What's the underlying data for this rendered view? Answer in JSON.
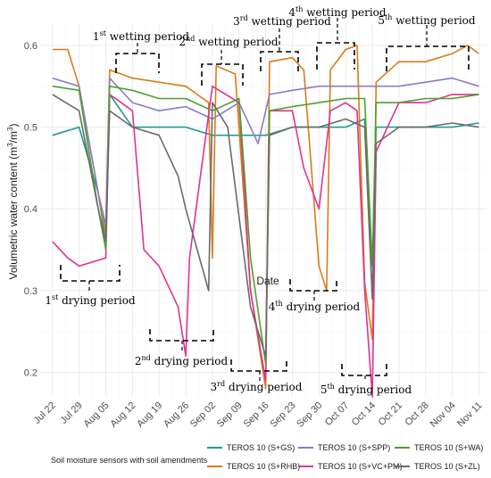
{
  "chart_data": {
    "type": "line",
    "xlabel": "Date",
    "ylabel": "Volumetric water content (m³/m³)",
    "ylabel_main": "Volumetric water content (m",
    "ylabel_unit_mid": "/m",
    "ylabel_end": ")",
    "ylim": [
      0.17,
      0.625
    ],
    "yticks": [
      0.2,
      0.3,
      0.4,
      0.5,
      0.6
    ],
    "ytick_labels": [
      "0.2",
      "0.3",
      "0.4",
      "0.5",
      "0.6"
    ],
    "xlim": [
      "2019-07-19",
      "2019-11-13"
    ],
    "xticks": [
      "2019-07-22",
      "2019-07-29",
      "2019-08-05",
      "2019-08-12",
      "2019-08-19",
      "2019-08-26",
      "2019-09-02",
      "2019-09-09",
      "2019-09-16",
      "2019-09-23",
      "2019-09-30",
      "2019-10-07",
      "2019-10-14",
      "2019-10-21",
      "2019-10-28",
      "2019-11-04",
      "2019-11-11"
    ],
    "xtick_labels": [
      "Jul 22",
      "Jul 29",
      "Aug 05",
      "Aug 12",
      "Aug 19",
      "Aug 26",
      "Sep 02",
      "Sep 09",
      "Sep 16",
      "Sep 23",
      "Sep 30",
      "Oct 07",
      "Oct 14",
      "Oct 21",
      "Oct 28",
      "Nov 04",
      "Nov 11"
    ],
    "grid": true,
    "legend_position": "bottom",
    "legend_title": "Soil moisture sensors with soil amendments",
    "series": [
      {
        "name": "TEROS 10 (S+GS)",
        "color": "#1a9e8f",
        "points": [
          [
            "2019-07-22",
            0.49
          ],
          [
            "2019-07-29",
            0.5
          ],
          [
            "2019-08-03",
            0.42
          ],
          [
            "2019-08-05",
            0.36
          ],
          [
            "2019-08-06",
            0.54
          ],
          [
            "2019-08-12",
            0.5
          ],
          [
            "2019-08-19",
            0.5
          ],
          [
            "2019-08-26",
            0.5
          ],
          [
            "2019-09-02",
            0.49
          ],
          [
            "2019-09-09",
            0.49
          ],
          [
            "2019-09-16",
            0.49
          ],
          [
            "2019-09-23",
            0.5
          ],
          [
            "2019-09-30",
            0.5
          ],
          [
            "2019-10-07",
            0.5
          ],
          [
            "2019-10-12",
            0.51
          ],
          [
            "2019-10-14",
            0.29
          ],
          [
            "2019-10-15",
            0.5
          ],
          [
            "2019-10-21",
            0.5
          ],
          [
            "2019-10-28",
            0.5
          ],
          [
            "2019-11-04",
            0.5
          ],
          [
            "2019-11-11",
            0.505
          ]
        ]
      },
      {
        "name": "TEROS 10 (S+RHB)",
        "color": "#d97b1c",
        "points": [
          [
            "2019-07-22",
            0.595
          ],
          [
            "2019-07-26",
            0.595
          ],
          [
            "2019-07-29",
            0.55
          ],
          [
            "2019-08-03",
            0.42
          ],
          [
            "2019-08-05",
            0.37
          ],
          [
            "2019-08-06",
            0.57
          ],
          [
            "2019-08-12",
            0.56
          ],
          [
            "2019-08-19",
            0.555
          ],
          [
            "2019-08-26",
            0.55
          ],
          [
            "2019-09-01",
            0.53
          ],
          [
            "2019-09-02",
            0.34
          ],
          [
            "2019-09-03",
            0.575
          ],
          [
            "2019-09-08",
            0.565
          ],
          [
            "2019-09-12",
            0.3
          ],
          [
            "2019-09-16",
            0.18
          ],
          [
            "2019-09-17",
            0.58
          ],
          [
            "2019-09-23",
            0.585
          ],
          [
            "2019-09-26",
            0.57
          ],
          [
            "2019-09-30",
            0.33
          ],
          [
            "2019-10-02",
            0.3
          ],
          [
            "2019-10-03",
            0.57
          ],
          [
            "2019-10-07",
            0.595
          ],
          [
            "2019-10-10",
            0.6
          ],
          [
            "2019-10-12",
            0.31
          ],
          [
            "2019-10-14",
            0.24
          ],
          [
            "2019-10-15",
            0.555
          ],
          [
            "2019-10-21",
            0.58
          ],
          [
            "2019-10-28",
            0.58
          ],
          [
            "2019-11-04",
            0.59
          ],
          [
            "2019-11-08",
            0.6
          ],
          [
            "2019-11-11",
            0.59
          ]
        ]
      },
      {
        "name": "TEROS 10 (S+SPP)",
        "color": "#8a7cc6",
        "points": [
          [
            "2019-07-22",
            0.56
          ],
          [
            "2019-07-29",
            0.55
          ],
          [
            "2019-08-03",
            0.42
          ],
          [
            "2019-08-05",
            0.38
          ],
          [
            "2019-08-06",
            0.56
          ],
          [
            "2019-08-12",
            0.53
          ],
          [
            "2019-08-19",
            0.52
          ],
          [
            "2019-08-26",
            0.525
          ],
          [
            "2019-09-02",
            0.51
          ],
          [
            "2019-09-09",
            0.53
          ],
          [
            "2019-09-14",
            0.48
          ],
          [
            "2019-09-17",
            0.54
          ],
          [
            "2019-09-23",
            0.545
          ],
          [
            "2019-09-30",
            0.55
          ],
          [
            "2019-10-07",
            0.55
          ],
          [
            "2019-10-12",
            0.55
          ],
          [
            "2019-10-14",
            0.55
          ],
          [
            "2019-10-21",
            0.55
          ],
          [
            "2019-10-28",
            0.555
          ],
          [
            "2019-11-04",
            0.56
          ],
          [
            "2019-11-11",
            0.55
          ]
        ]
      },
      {
        "name": "TEROS 10 (S+VC+PM)",
        "color": "#e0338f",
        "points": [
          [
            "2019-07-22",
            0.36
          ],
          [
            "2019-07-26",
            0.34
          ],
          [
            "2019-07-29",
            0.33
          ],
          [
            "2019-08-05",
            0.34
          ],
          [
            "2019-08-06",
            0.54
          ],
          [
            "2019-08-12",
            0.52
          ],
          [
            "2019-08-15",
            0.35
          ],
          [
            "2019-08-19",
            0.33
          ],
          [
            "2019-08-24",
            0.28
          ],
          [
            "2019-08-26",
            0.22
          ],
          [
            "2019-08-27",
            0.34
          ],
          [
            "2019-09-02",
            0.55
          ],
          [
            "2019-09-09",
            0.53
          ],
          [
            "2019-09-12",
            0.3
          ],
          [
            "2019-09-16",
            0.19
          ],
          [
            "2019-09-17",
            0.52
          ],
          [
            "2019-09-23",
            0.52
          ],
          [
            "2019-09-26",
            0.45
          ],
          [
            "2019-09-30",
            0.4
          ],
          [
            "2019-10-03",
            0.52
          ],
          [
            "2019-10-07",
            0.53
          ],
          [
            "2019-10-10",
            0.52
          ],
          [
            "2019-10-12",
            0.3
          ],
          [
            "2019-10-14",
            0.17
          ],
          [
            "2019-10-15",
            0.47
          ],
          [
            "2019-10-21",
            0.53
          ],
          [
            "2019-10-28",
            0.53
          ],
          [
            "2019-11-04",
            0.54
          ],
          [
            "2019-11-11",
            0.54
          ]
        ]
      },
      {
        "name": "TEROS 10 (S+WA)",
        "color": "#4fa02e",
        "points": [
          [
            "2019-07-22",
            0.55
          ],
          [
            "2019-07-29",
            0.545
          ],
          [
            "2019-08-03",
            0.4
          ],
          [
            "2019-08-05",
            0.35
          ],
          [
            "2019-08-06",
            0.55
          ],
          [
            "2019-08-12",
            0.545
          ],
          [
            "2019-08-19",
            0.535
          ],
          [
            "2019-08-26",
            0.535
          ],
          [
            "2019-09-02",
            0.52
          ],
          [
            "2019-09-09",
            0.535
          ],
          [
            "2019-09-12",
            0.34
          ],
          [
            "2019-09-16",
            0.21
          ],
          [
            "2019-09-17",
            0.52
          ],
          [
            "2019-09-23",
            0.525
          ],
          [
            "2019-09-30",
            0.53
          ],
          [
            "2019-10-07",
            0.535
          ],
          [
            "2019-10-12",
            0.535
          ],
          [
            "2019-10-14",
            0.33
          ],
          [
            "2019-10-15",
            0.53
          ],
          [
            "2019-10-21",
            0.53
          ],
          [
            "2019-10-28",
            0.535
          ],
          [
            "2019-11-04",
            0.535
          ],
          [
            "2019-11-11",
            0.54
          ]
        ]
      },
      {
        "name": "TEROS 10 (S+ZL)",
        "color": "#6b6b6b",
        "points": [
          [
            "2019-07-22",
            0.54
          ],
          [
            "2019-07-29",
            0.52
          ],
          [
            "2019-08-03",
            0.4
          ],
          [
            "2019-08-05",
            0.36
          ],
          [
            "2019-08-06",
            0.52
          ],
          [
            "2019-08-12",
            0.5
          ],
          [
            "2019-08-19",
            0.49
          ],
          [
            "2019-08-24",
            0.44
          ],
          [
            "2019-08-26",
            0.4
          ],
          [
            "2019-09-01",
            0.3
          ],
          [
            "2019-09-02",
            0.53
          ],
          [
            "2019-09-06",
            0.5
          ],
          [
            "2019-09-12",
            0.28
          ],
          [
            "2019-09-16",
            0.22
          ],
          [
            "2019-09-17",
            0.49
          ],
          [
            "2019-09-23",
            0.5
          ],
          [
            "2019-09-30",
            0.5
          ],
          [
            "2019-10-07",
            0.51
          ],
          [
            "2019-10-12",
            0.5
          ],
          [
            "2019-10-14",
            0.29
          ],
          [
            "2019-10-15",
            0.48
          ],
          [
            "2019-10-21",
            0.5
          ],
          [
            "2019-10-28",
            0.5
          ],
          [
            "2019-11-04",
            0.505
          ],
          [
            "2019-11-11",
            0.5
          ]
        ]
      }
    ],
    "annotations": [
      {
        "text_num": "1",
        "text_sup": "st",
        "text_rest": " wetting period",
        "kind": "wetting"
      },
      {
        "text_num": "2",
        "text_sup": "nd",
        "text_rest": " wetting period",
        "kind": "wetting"
      },
      {
        "text_num": "3",
        "text_sup": "rd",
        "text_rest": " wetting period",
        "kind": "wetting"
      },
      {
        "text_num": "4",
        "text_sup": "th",
        "text_rest": " wetting period",
        "kind": "wetting"
      },
      {
        "text_num": "5",
        "text_sup": "th",
        "text_rest": " wetting period",
        "kind": "wetting"
      },
      {
        "text_num": "1",
        "text_sup": "st",
        "text_rest": " drying period",
        "kind": "drying"
      },
      {
        "text_num": "2",
        "text_sup": "nd",
        "text_rest": " drying period",
        "kind": "drying"
      },
      {
        "text_num": "3",
        "text_sup": "rd",
        "text_rest": " drying period",
        "kind": "drying"
      },
      {
        "text_num": "4",
        "text_sup": "th",
        "text_rest": " drying period",
        "kind": "drying"
      },
      {
        "text_num": "5",
        "text_sup": "th",
        "text_rest": " drying period",
        "kind": "drying"
      }
    ]
  }
}
